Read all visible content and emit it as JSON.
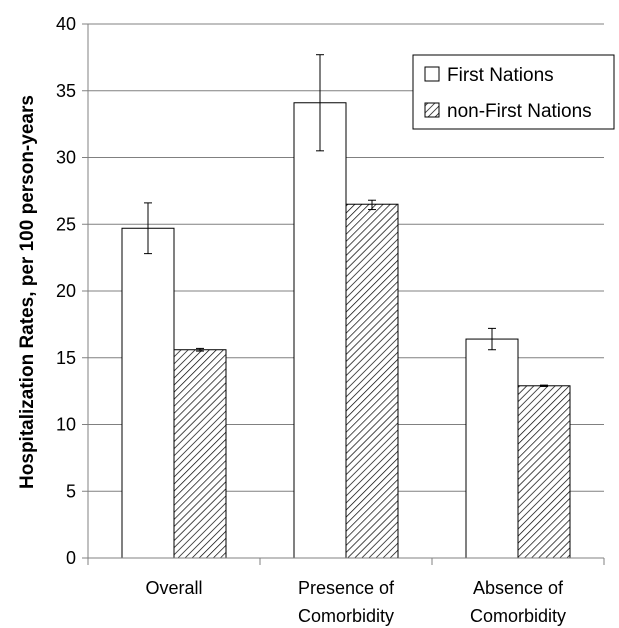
{
  "chart_data": {
    "type": "bar",
    "ylabel": "Hospitalization Rates, per 100 person-years",
    "ylim": [
      0,
      40
    ],
    "yticks": [
      0,
      5,
      10,
      15,
      20,
      25,
      30,
      35,
      40
    ],
    "grid": true,
    "legend_position": "top-right",
    "categories": [
      [
        "Overall"
      ],
      [
        "Presence of",
        "Comorbidity"
      ],
      [
        "Absence of",
        "Comorbidity"
      ]
    ],
    "series": [
      {
        "name": "First Nations",
        "fill": "#ffffff",
        "pattern": "none",
        "values": [
          24.7,
          34.1,
          16.4
        ],
        "error_low": [
          22.8,
          30.5,
          15.6
        ],
        "error_high": [
          26.6,
          37.7,
          17.2
        ]
      },
      {
        "name": "non-First Nations",
        "fill": "#ffffff",
        "pattern": "diagonal-hatch",
        "values": [
          15.6,
          26.5,
          12.9
        ],
        "error_low": [
          15.5,
          26.1,
          12.85
        ],
        "error_high": [
          15.7,
          26.8,
          12.95
        ]
      }
    ]
  }
}
